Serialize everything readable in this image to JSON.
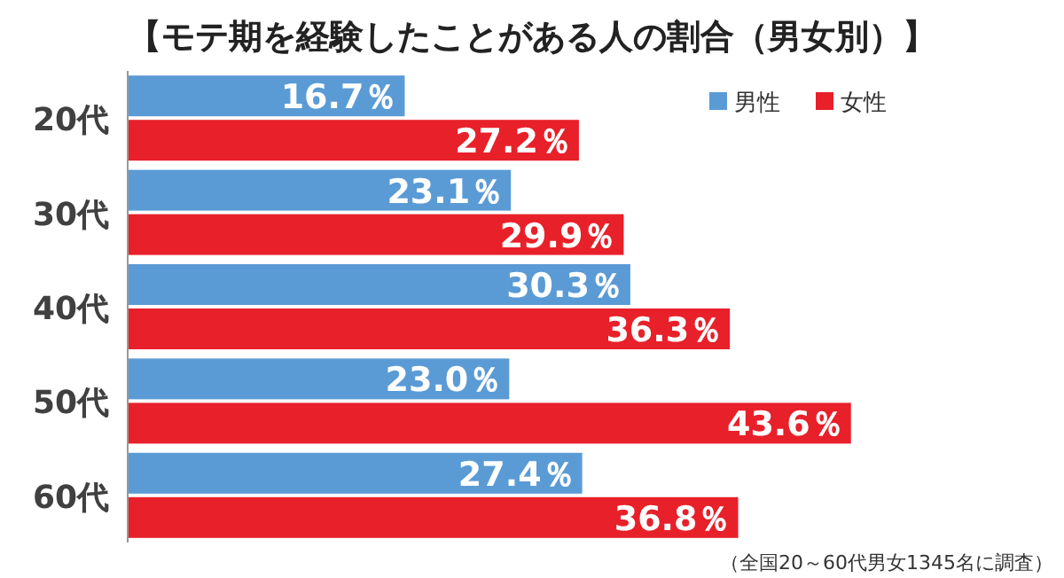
{
  "chart_data": {
    "type": "bar",
    "orientation": "horizontal",
    "title": "【モテ期を経験したことがある人の割合（男女別）】",
    "categories": [
      "20代",
      "30代",
      "40代",
      "50代",
      "60代"
    ],
    "series": [
      {
        "name": "男性",
        "color": "#5b9bd5",
        "values": [
          16.7,
          23.1,
          30.3,
          23.0,
          27.4
        ],
        "value_labels": [
          "16.7％",
          "23.1％",
          "30.3％",
          "23.0％",
          "27.4％"
        ]
      },
      {
        "name": "女性",
        "color": "#e8202a",
        "values": [
          27.2,
          29.9,
          36.3,
          43.6,
          36.8
        ],
        "value_labels": [
          "27.2％",
          "29.9％",
          "36.3％",
          "43.6％",
          "36.8％"
        ]
      }
    ],
    "legend": "top right",
    "annotations": [
      "（全国20～60代男女1345名に調査）"
    ]
  }
}
